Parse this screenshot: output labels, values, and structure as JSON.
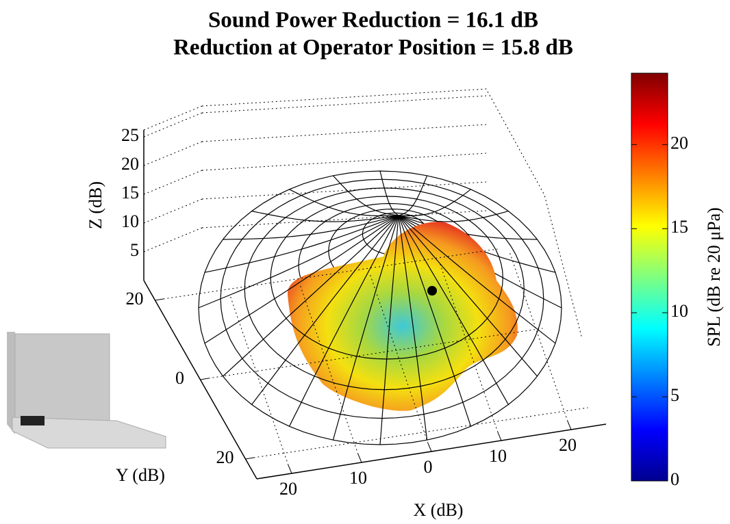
{
  "chart_data": {
    "type": "surface3d",
    "title": [
      "Sound Power Reduction = 16.1 dB",
      "Reduction at Operator Position = 15.8 dB"
    ],
    "xlabel": "X (dB)",
    "ylabel": "Y (dB)",
    "zlabel": "Z (dB)",
    "zlim": [
      0,
      25
    ],
    "zticks": [
      5,
      10,
      15,
      20,
      25
    ],
    "xlim": [
      -25,
      25
    ],
    "xticks": [
      {
        "value": -20,
        "label": "20"
      },
      {
        "value": -10,
        "label": "10"
      },
      0,
      10,
      20
    ],
    "ylim": [
      -25,
      25
    ],
    "yticks": [
      {
        "value": -20,
        "label": "20"
      },
      0,
      20
    ],
    "colorbar": {
      "label": "SPL (dB re 20 μPa)",
      "lim": [
        0,
        24
      ],
      "ticks": [
        0,
        5,
        10,
        15,
        20
      ],
      "colormap": "jet"
    }
  }
}
